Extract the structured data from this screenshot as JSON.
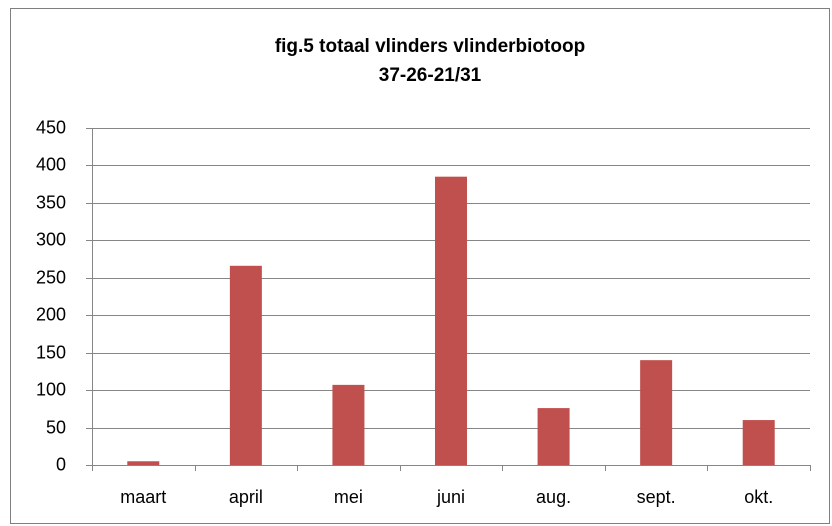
{
  "chart_data": {
    "type": "bar",
    "title": [
      "fig.5  totaal vlinders vlinderbiotoop",
      "37-26-21/31"
    ],
    "categories": [
      "maart",
      "april",
      "mei",
      "juni",
      "aug.",
      "sept.",
      "okt."
    ],
    "values": [
      5,
      266,
      107,
      385,
      76,
      140,
      60
    ],
    "color": "#c0504d",
    "ylim": [
      0,
      450
    ],
    "yticks": [
      0,
      50,
      100,
      150,
      200,
      250,
      300,
      350,
      400,
      450
    ],
    "grid": true
  }
}
